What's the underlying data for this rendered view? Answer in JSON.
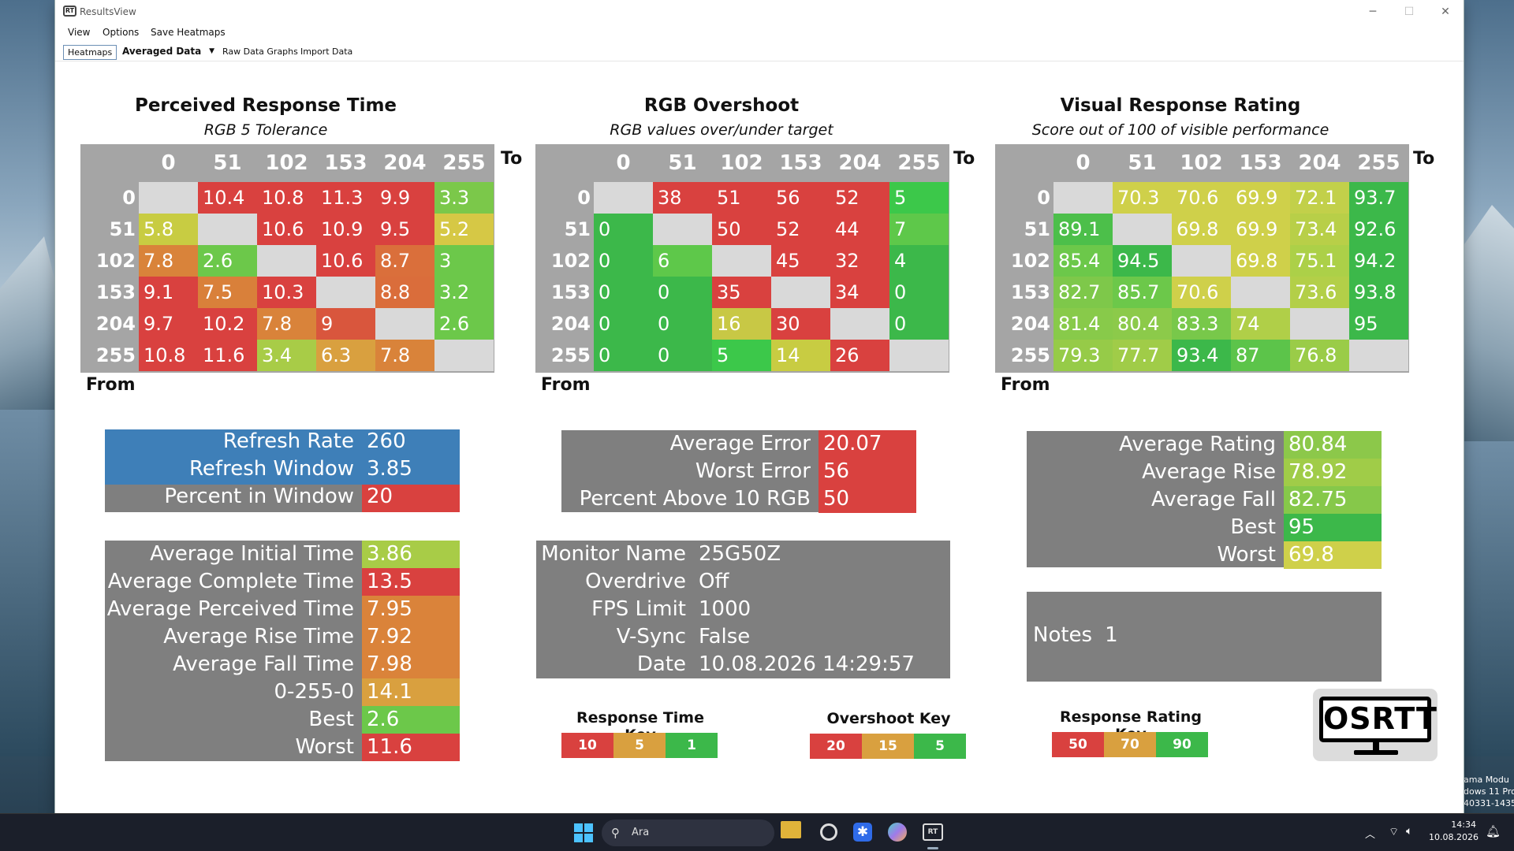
{
  "window": {
    "title": "ResultsView",
    "controls": [
      "─",
      "☐",
      "✕"
    ]
  },
  "menus": [
    "View",
    "Options",
    "Save Heatmaps"
  ],
  "toolbar": {
    "tab": "Heatmaps",
    "dropdown": "Averaged Data",
    "raw": "Raw Data Graphs",
    "import": "Import Data"
  },
  "heatmaps": [
    {
      "title": "Perceived Response Time",
      "subtitle": "RGB 5 Tolerance",
      "to": "To",
      "from": "From",
      "levels": [
        "0",
        "51",
        "102",
        "153",
        "204",
        "255"
      ],
      "cells": [
        [
          "",
          "10.4",
          "10.8",
          "11.3",
          "9.9",
          "3.3"
        ],
        [
          "5.8",
          "",
          "10.6",
          "10.9",
          "9.5",
          "5.2"
        ],
        [
          "7.8",
          "2.6",
          "",
          "10.6",
          "8.7",
          "3"
        ],
        [
          "9.1",
          "7.5",
          "10.3",
          "",
          "8.8",
          "3.2"
        ],
        [
          "9.7",
          "10.2",
          "7.8",
          "9",
          "",
          "2.6"
        ],
        [
          "10.8",
          "11.6",
          "3.4",
          "6.3",
          "7.8",
          ""
        ]
      ],
      "colors": [
        [
          "#d9d9d9",
          "#d9413f",
          "#d9413f",
          "#d9413f",
          "#d9413f",
          "#7bc84a"
        ],
        [
          "#c8cc42",
          "#d9d9d9",
          "#d9413f",
          "#d9413f",
          "#d9413f",
          "#d6c845"
        ],
        [
          "#d9833a",
          "#6cc84a",
          "#d9d9d9",
          "#d9413f",
          "#da6f3b",
          "#6cc84a"
        ],
        [
          "#d9413f",
          "#d9803a",
          "#d9413f",
          "#d9d9d9",
          "#da6d3b",
          "#6cc84a"
        ],
        [
          "#d9413f",
          "#d9413f",
          "#d9833a",
          "#d9563d",
          "#d9d9d9",
          "#6cc84a"
        ],
        [
          "#d9413f",
          "#d9413f",
          "#a8cc47",
          "#d9a03f",
          "#d9833a",
          "#d9d9d9"
        ]
      ]
    },
    {
      "title": "RGB Overshoot",
      "subtitle": "RGB values over/under target",
      "to": "To",
      "from": "From",
      "levels": [
        "0",
        "51",
        "102",
        "153",
        "204",
        "255"
      ],
      "cells": [
        [
          "",
          "38",
          "51",
          "56",
          "52",
          "5"
        ],
        [
          "0",
          "",
          "50",
          "52",
          "44",
          "7"
        ],
        [
          "0",
          "6",
          "",
          "45",
          "32",
          "4"
        ],
        [
          "0",
          "0",
          "35",
          "",
          "34",
          "0"
        ],
        [
          "0",
          "0",
          "16",
          "30",
          "",
          "0"
        ],
        [
          "0",
          "0",
          "5",
          "14",
          "26",
          ""
        ]
      ],
      "colors": [
        [
          "#d9d9d9",
          "#d9413f",
          "#d9413f",
          "#d9413f",
          "#d9413f",
          "#3cc84a"
        ],
        [
          "#3cb84a",
          "#d9d9d9",
          "#d9413f",
          "#d9413f",
          "#d9413f",
          "#5ec84a"
        ],
        [
          "#3cb84a",
          "#5ec84a",
          "#d9d9d9",
          "#d9413f",
          "#d9413f",
          "#3cb84a"
        ],
        [
          "#3cb84a",
          "#3cb84a",
          "#d9413f",
          "#d9d9d9",
          "#d9413f",
          "#3cb84a"
        ],
        [
          "#3cb84a",
          "#3cb84a",
          "#c8c845",
          "#d9413f",
          "#d9d9d9",
          "#3cb84a"
        ],
        [
          "#3cb84a",
          "#3cb84a",
          "#3cc84a",
          "#c8cc42",
          "#d9413f",
          "#d9d9d9"
        ]
      ]
    },
    {
      "title": "Visual Response Rating",
      "subtitle": "Score out of 100 of visible performance",
      "to": "To",
      "from": "From",
      "levels": [
        "0",
        "51",
        "102",
        "153",
        "204",
        "255"
      ],
      "cells": [
        [
          "",
          "70.3",
          "70.6",
          "69.9",
          "72.1",
          "93.7"
        ],
        [
          "89.1",
          "",
          "69.8",
          "69.9",
          "73.4",
          "92.6"
        ],
        [
          "85.4",
          "94.5",
          "",
          "69.8",
          "75.1",
          "94.2"
        ],
        [
          "82.7",
          "85.7",
          "70.6",
          "",
          "73.6",
          "93.8"
        ],
        [
          "81.4",
          "80.4",
          "83.3",
          "74",
          "",
          "95"
        ],
        [
          "79.3",
          "77.7",
          "93.4",
          "87",
          "76.8",
          ""
        ]
      ],
      "colors": [
        [
          "#d9d9d9",
          "#cfd04a",
          "#cfd04a",
          "#cfd04a",
          "#c2d04a",
          "#3cb84a"
        ],
        [
          "#4cbf4a",
          "#d9d9d9",
          "#cfd04a",
          "#cfd04a",
          "#b8cf48",
          "#3cb84a"
        ],
        [
          "#6cc84a",
          "#3cb84a",
          "#d9d9d9",
          "#cfd04a",
          "#acd048",
          "#3cb84a"
        ],
        [
          "#7ec84a",
          "#6cc84a",
          "#cfd04a",
          "#d9d9d9",
          "#b3cf48",
          "#3cb84a"
        ],
        [
          "#88ca4a",
          "#8cca4a",
          "#78c84a",
          "#b0cf48",
          "#d9d9d9",
          "#3cb84a"
        ],
        [
          "#96cb48",
          "#a0cc48",
          "#3cb84a",
          "#5cc44a",
          "#9acc48",
          "#d9d9d9"
        ]
      ]
    }
  ],
  "refresh": [
    {
      "k": "Refresh Rate",
      "v": "260"
    },
    {
      "k": "Refresh Window",
      "v": "3.85"
    },
    {
      "k": "Percent in Window",
      "v": "20"
    }
  ],
  "overshoot_stats": [
    {
      "k": "Average Error",
      "v": "20.07"
    },
    {
      "k": "Worst Error",
      "v": "56"
    },
    {
      "k": "Percent Above 10 RGB",
      "v": "50"
    }
  ],
  "rating_stats": [
    {
      "k": "Average Rating",
      "v": "80.84"
    },
    {
      "k": "Average Rise",
      "v": "78.92"
    },
    {
      "k": "Average Fall",
      "v": "82.75"
    },
    {
      "k": "Best",
      "v": "95"
    },
    {
      "k": "Worst",
      "v": "69.8"
    }
  ],
  "times": [
    {
      "k": "Average Initial Time",
      "v": "3.86"
    },
    {
      "k": "Average Complete Time",
      "v": "13.5"
    },
    {
      "k": "Average Perceived Time",
      "v": "7.95"
    },
    {
      "k": "Average Rise Time",
      "v": "7.92"
    },
    {
      "k": "Average Fall Time",
      "v": "7.98"
    },
    {
      "k": "0-255-0",
      "v": "14.1"
    },
    {
      "k": "Best",
      "v": "2.6"
    },
    {
      "k": "Worst",
      "v": "11.6"
    }
  ],
  "monitor": [
    {
      "k": "Monitor Name",
      "v": "25G50Z"
    },
    {
      "k": "Overdrive",
      "v": "Off"
    },
    {
      "k": "FPS Limit",
      "v": "1000"
    },
    {
      "k": "V-Sync",
      "v": "False"
    },
    {
      "k": "Date",
      "v": "10.08.2026 14:29:57"
    }
  ],
  "notes": {
    "k": "Notes",
    "v": "1"
  },
  "keys": [
    {
      "title": "Response Time Key",
      "items": [
        {
          "v": "10",
          "c": "#d9413f"
        },
        {
          "v": "5",
          "c": "#d9a03f"
        },
        {
          "v": "1",
          "c": "#3cb84a"
        }
      ]
    },
    {
      "title": "Overshoot Key",
      "items": [
        {
          "v": "20",
          "c": "#d9413f"
        },
        {
          "v": "15",
          "c": "#d9a03f"
        },
        {
          "v": "5",
          "c": "#3cb84a"
        }
      ]
    },
    {
      "title": "Response Rating Key",
      "items": [
        {
          "v": "50",
          "c": "#d9413f"
        },
        {
          "v": "70",
          "c": "#d9a03f"
        },
        {
          "v": "90",
          "c": "#3cb84a"
        }
      ]
    }
  ],
  "logo": "OSRTT",
  "colors": {
    "blue": "#3e7fb8",
    "red": "#d9413f",
    "green": "#3cb84a",
    "yellowgreen": "#a8cc47",
    "orange": "#da833a",
    "gray": "#7f7f7f"
  },
  "taskbar": {
    "search": "Ara",
    "time": "14:34",
    "date": "10.08.2026"
  },
  "watermark": [
    "ama Modu",
    "dows 11 Pro",
    "40331-1435"
  ]
}
